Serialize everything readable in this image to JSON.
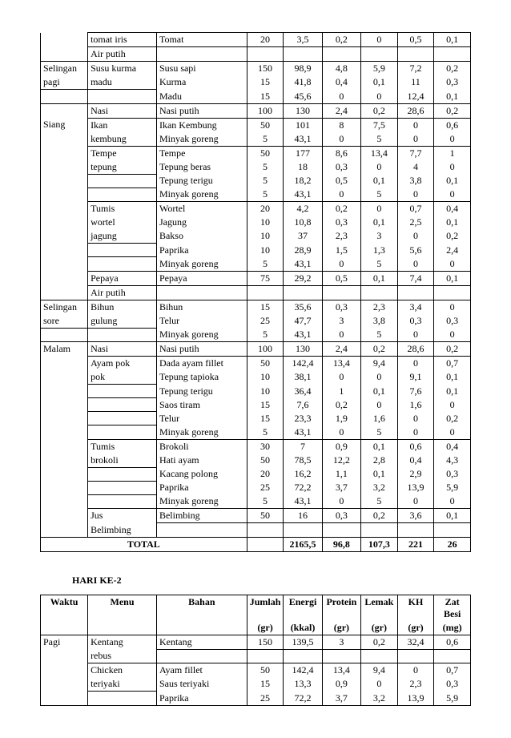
{
  "table1": {
    "rows": [
      {
        "c1": "",
        "c2": "tomat iris",
        "c3": "Tomat",
        "c4": "20",
        "c5": "3,5",
        "c6": "0,2",
        "c7": "0",
        "c8": "0,5",
        "c9": "0,1",
        "b1": "nt nb",
        "b2": "",
        "b3": "",
        "b4": "",
        "b5": "",
        "b6": "",
        "b7": "",
        "b8": "",
        "b9": ""
      },
      {
        "c1": "",
        "c2": "Air putih",
        "c3": "",
        "c4": "",
        "c5": "",
        "c6": "",
        "c7": "",
        "c8": "",
        "c9": "",
        "b1": "nt",
        "b2": "",
        "b3": "",
        "b4": "",
        "b5": "",
        "b6": "",
        "b7": "",
        "b8": "",
        "b9": ""
      },
      {
        "c1": "Selingan",
        "c2": "Susu kurma",
        "c3": "Susu sapi",
        "c4": "150",
        "c5": "98,9",
        "c6": "4,8",
        "c7": "5,9",
        "c8": "7,2",
        "c9": "0,2",
        "b1": "nb",
        "b2": "nb",
        "b3": "nb",
        "b4": "nb",
        "b5": "nb",
        "b6": "nb",
        "b7": "nb",
        "b8": "nb",
        "b9": "nb"
      },
      {
        "c1": "pagi",
        "c2": "madu",
        "c3": "Kurma",
        "c4": "15",
        "c5": "41,8",
        "c6": "0,4",
        "c7": "0,1",
        "c8": "11",
        "c9": "0,3",
        "b1": "nt",
        "b2": "nt",
        "b3": "nt nb",
        "b4": "nt nb",
        "b5": "nt nb",
        "b6": "nt nb",
        "b7": "nt nb",
        "b8": "nt nb",
        "b9": "nt nb"
      },
      {
        "c1": "",
        "c2": "",
        "c3": "Madu",
        "c4": "15",
        "c5": "45,6",
        "c6": "0",
        "c7": "0",
        "c8": "12,4",
        "c9": "0,1",
        "b1": "nt",
        "b2": "nt",
        "b3": "nt",
        "b4": "nt",
        "b5": "nt",
        "b6": "nt",
        "b7": "nt",
        "b8": "nt",
        "b9": "nt"
      },
      {
        "c1": "",
        "c2": "Nasi",
        "c3": "Nasi putih",
        "c4": "100",
        "c5": "130",
        "c6": "2,4",
        "c7": "0,2",
        "c8": "28,6",
        "c9": "0,2",
        "b1": "nb",
        "b2": "",
        "b3": "",
        "b4": "",
        "b5": "",
        "b6": "",
        "b7": "",
        "b8": "",
        "b9": ""
      },
      {
        "c1": "Siang",
        "c2": "Ikan",
        "c3": "Ikan Kembung",
        "c4": "50",
        "c5": "101",
        "c6": "8",
        "c7": "7,5",
        "c8": "0",
        "c9": "0,6",
        "b1": "nt nb",
        "b2": "nb",
        "b3": "nb",
        "b4": "nb",
        "b5": "nb",
        "b6": "nb",
        "b7": "nb",
        "b8": "nb",
        "b9": "nb"
      },
      {
        "c1": "",
        "c2": "kembung",
        "c3": "Minyak goreng",
        "c4": "5",
        "c5": "43,1",
        "c6": "0",
        "c7": "5",
        "c8": "0",
        "c9": "0",
        "b1": "nt nb",
        "b2": "nt",
        "b3": "nt",
        "b4": "nt",
        "b5": "nt",
        "b6": "nt",
        "b7": "nt",
        "b8": "nt",
        "b9": "nt"
      },
      {
        "c1": "",
        "c2": "Tempe",
        "c3": "Tempe",
        "c4": "50",
        "c5": "177",
        "c6": "8,6",
        "c7": "13,4",
        "c8": "7,7",
        "c9": "1",
        "b1": "nt nb",
        "b2": "nb",
        "b3": "nb",
        "b4": "nb",
        "b5": "nb",
        "b6": "nb",
        "b7": "nb",
        "b8": "nb",
        "b9": "nb"
      },
      {
        "c1": "",
        "c2": "tepung",
        "c3": "Tepung beras",
        "c4": "5",
        "c5": "18",
        "c6": "0,3",
        "c7": "0",
        "c8": "4",
        "c9": "0",
        "b1": "nt nb",
        "b2": "nt",
        "b3": "nt nb",
        "b4": "nt nb",
        "b5": "nt nb",
        "b6": "nt nb",
        "b7": "nt nb",
        "b8": "nt nb",
        "b9": "nt nb"
      },
      {
        "c1": "",
        "c2": "",
        "c3": "Tepung terigu",
        "c4": "5",
        "c5": "18,2",
        "c6": "0,5",
        "c7": "0,1",
        "c8": "3,8",
        "c9": "0,1",
        "b1": "nt nb",
        "b2": "nt",
        "b3": "nt nb",
        "b4": "nt nb",
        "b5": "nt nb",
        "b6": "nt nb",
        "b7": "nt nb",
        "b8": "nt nb",
        "b9": "nt nb"
      },
      {
        "c1": "",
        "c2": "",
        "c3": "Minyak goreng",
        "c4": "5",
        "c5": "43,1",
        "c6": "0",
        "c7": "5",
        "c8": "0",
        "c9": "0",
        "b1": "nt nb",
        "b2": "nt",
        "b3": "nt",
        "b4": "nt",
        "b5": "nt",
        "b6": "nt",
        "b7": "nt",
        "b8": "nt",
        "b9": "nt"
      },
      {
        "c1": "",
        "c2": "Tumis",
        "c3": "Wortel",
        "c4": "20",
        "c5": "4,2",
        "c6": "0,2",
        "c7": "0",
        "c8": "0,7",
        "c9": "0,4",
        "b1": "nt nb",
        "b2": "nb",
        "b3": "nb",
        "b4": "nb",
        "b5": "nb",
        "b6": "nb",
        "b7": "nb",
        "b8": "nb",
        "b9": "nb"
      },
      {
        "c1": "",
        "c2": "wortel",
        "c3": "Jagung",
        "c4": "10",
        "c5": "10,8",
        "c6": "0,3",
        "c7": "0,1",
        "c8": "2,5",
        "c9": "0,1",
        "b1": "nt nb",
        "b2": "nt nb",
        "b3": "nt nb",
        "b4": "nt nb",
        "b5": "nt nb",
        "b6": "nt nb",
        "b7": "nt nb",
        "b8": "nt nb",
        "b9": "nt nb"
      },
      {
        "c1": "",
        "c2": "jagung",
        "c3": "Bakso",
        "c4": "10",
        "c5": "37",
        "c6": "2,3",
        "c7": "3",
        "c8": "0",
        "c9": "0,2",
        "b1": "nt nb",
        "b2": "nt",
        "b3": "nt nb",
        "b4": "nt nb",
        "b5": "nt nb",
        "b6": "nt nb",
        "b7": "nt nb",
        "b8": "nt nb",
        "b9": "nt nb"
      },
      {
        "c1": "",
        "c2": "",
        "c3": "Paprika",
        "c4": "10",
        "c5": "28,9",
        "c6": "1,5",
        "c7": "1,3",
        "c8": "5,6",
        "c9": "2,4",
        "b1": "nt nb",
        "b2": "nt",
        "b3": "nt nb",
        "b4": "nt nb",
        "b5": "nt nb",
        "b6": "nt nb",
        "b7": "nt nb",
        "b8": "nt nb",
        "b9": "nt nb"
      },
      {
        "c1": "",
        "c2": "",
        "c3": "Minyak goreng",
        "c4": "5",
        "c5": "43,1",
        "c6": "0",
        "c7": "5",
        "c8": "0",
        "c9": "0",
        "b1": "nt nb",
        "b2": "nt",
        "b3": "nt",
        "b4": "nt",
        "b5": "nt",
        "b6": "nt",
        "b7": "nt",
        "b8": "nt",
        "b9": "nt"
      },
      {
        "c1": "",
        "c2": "Pepaya",
        "c3": "Pepaya",
        "c4": "75",
        "c5": "29,2",
        "c6": "0,5",
        "c7": "0,1",
        "c8": "7,4",
        "c9": "0,1",
        "b1": "nt nb",
        "b2": "",
        "b3": "",
        "b4": "",
        "b5": "",
        "b6": "",
        "b7": "",
        "b8": "",
        "b9": ""
      },
      {
        "c1": "",
        "c2": "Air putih",
        "c3": "",
        "c4": "",
        "c5": "",
        "c6": "",
        "c7": "",
        "c8": "",
        "c9": "",
        "b1": "nt",
        "b2": "",
        "b3": "",
        "b4": "",
        "b5": "",
        "b6": "",
        "b7": "",
        "b8": "",
        "b9": ""
      },
      {
        "c1": "Selingan",
        "c2": "Bihun",
        "c3": "Bihun",
        "c4": "15",
        "c5": "35,6",
        "c6": "0,3",
        "c7": "2,3",
        "c8": "3,4",
        "c9": "0",
        "b1": "nb",
        "b2": "nb",
        "b3": "nb",
        "b4": "nb",
        "b5": "nb",
        "b6": "nb",
        "b7": "nb",
        "b8": "nb",
        "b9": "nb"
      },
      {
        "c1": "sore",
        "c2": "gulung",
        "c3": "Telur",
        "c4": "25",
        "c5": "47,7",
        "c6": "3",
        "c7": "3,8",
        "c8": "0,3",
        "c9": "0,3",
        "b1": "nt",
        "b2": "nt",
        "b3": "nt nb",
        "b4": "nt nb",
        "b5": "nt nb",
        "b6": "nt nb",
        "b7": "nt nb",
        "b8": "nt nb",
        "b9": "nt nb"
      },
      {
        "c1": "",
        "c2": "",
        "c3": "Minyak goreng",
        "c4": "5",
        "c5": "43,1",
        "c6": "0",
        "c7": "5",
        "c8": "0",
        "c9": "0",
        "b1": "nt",
        "b2": "nt",
        "b3": "nt",
        "b4": "nt",
        "b5": "nt",
        "b6": "nt",
        "b7": "nt",
        "b8": "nt",
        "b9": "nt"
      },
      {
        "c1": "Malam",
        "c2": "Nasi",
        "c3": "Nasi putih",
        "c4": "100",
        "c5": "130",
        "c6": "2,4",
        "c7": "0,2",
        "c8": "28,6",
        "c9": "0,2",
        "b1": "nb",
        "b2": "",
        "b3": "",
        "b4": "",
        "b5": "",
        "b6": "",
        "b7": "",
        "b8": "",
        "b9": ""
      },
      {
        "c1": "",
        "c2": "Ayam pok",
        "c3": "Dada ayam fillet",
        "c4": "50",
        "c5": "142,4",
        "c6": "13,4",
        "c7": "9,4",
        "c8": "0",
        "c9": "0,7",
        "b1": "nt nb",
        "b2": "nb",
        "b3": "nb",
        "b4": "nb",
        "b5": "nb",
        "b6": "nb",
        "b7": "nb",
        "b8": "nb",
        "b9": "nb"
      },
      {
        "c1": "",
        "c2": "pok",
        "c3": "Tepung tapioka",
        "c4": "10",
        "c5": "38,1",
        "c6": "0",
        "c7": "0",
        "c8": "9,1",
        "c9": "0,1",
        "b1": "nt nb",
        "b2": "nt",
        "b3": "nt nb",
        "b4": "nt nb",
        "b5": "nt nb",
        "b6": "nt nb",
        "b7": "nt nb",
        "b8": "nt nb",
        "b9": "nt nb"
      },
      {
        "c1": "",
        "c2": "",
        "c3": "Tepung terigu",
        "c4": "10",
        "c5": "36,4",
        "c6": "1",
        "c7": "0,1",
        "c8": "7,6",
        "c9": "0,1",
        "b1": "nt nb",
        "b2": "nt",
        "b3": "nt nb",
        "b4": "nt nb",
        "b5": "nt nb",
        "b6": "nt nb",
        "b7": "nt nb",
        "b8": "nt nb",
        "b9": "nt nb"
      },
      {
        "c1": "",
        "c2": "",
        "c3": "Saos tiram",
        "c4": "15",
        "c5": "7,6",
        "c6": "0,2",
        "c7": "0",
        "c8": "1,6",
        "c9": "0",
        "b1": "nt nb",
        "b2": "nt",
        "b3": "nt nb",
        "b4": "nt nb",
        "b5": "nt nb",
        "b6": "nt nb",
        "b7": "nt nb",
        "b8": "nt nb",
        "b9": "nt nb"
      },
      {
        "c1": "",
        "c2": "",
        "c3": "Telur",
        "c4": "15",
        "c5": "23,3",
        "c6": "1,9",
        "c7": "1,6",
        "c8": "0",
        "c9": "0,2",
        "b1": "nt nb",
        "b2": "nt",
        "b3": "nt nb",
        "b4": "nt nb",
        "b5": "nt nb",
        "b6": "nt nb",
        "b7": "nt nb",
        "b8": "nt nb",
        "b9": "nt nb"
      },
      {
        "c1": "",
        "c2": "",
        "c3": "Minyak goreng",
        "c4": "5",
        "c5": "43,1",
        "c6": "0",
        "c7": "5",
        "c8": "0",
        "c9": "0",
        "b1": "nt nb",
        "b2": "nt",
        "b3": "nt",
        "b4": "nt",
        "b5": "nt",
        "b6": "nt",
        "b7": "nt",
        "b8": "nt",
        "b9": "nt"
      },
      {
        "c1": "",
        "c2": "Tumis",
        "c3": "Brokoli",
        "c4": "30",
        "c5": "7",
        "c6": "0,9",
        "c7": "0,1",
        "c8": "0,6",
        "c9": "0,4",
        "b1": "nt nb",
        "b2": "nb",
        "b3": "nb",
        "b4": "nb",
        "b5": "nb",
        "b6": "nb",
        "b7": "nb",
        "b8": "nb",
        "b9": "nb"
      },
      {
        "c1": "",
        "c2": "brokoli",
        "c3": "Hati ayam",
        "c4": "50",
        "c5": "78,5",
        "c6": "12,2",
        "c7": "2,8",
        "c8": "0,4",
        "c9": "4,3",
        "b1": "nt nb",
        "b2": "nt",
        "b3": "nt nb",
        "b4": "nt nb",
        "b5": "nt nb",
        "b6": "nt nb",
        "b7": "nt nb",
        "b8": "nt nb",
        "b9": "nt nb"
      },
      {
        "c1": "",
        "c2": "",
        "c3": "Kacang polong",
        "c4": "20",
        "c5": "16,2",
        "c6": "1,1",
        "c7": "0,1",
        "c8": "2,9",
        "c9": "0,3",
        "b1": "nt nb",
        "b2": "nt",
        "b3": "nt nb",
        "b4": "nt nb",
        "b5": "nt nb",
        "b6": "nt nb",
        "b7": "nt nb",
        "b8": "nt nb",
        "b9": "nt nb"
      },
      {
        "c1": "",
        "c2": "",
        "c3": "Paprika",
        "c4": "25",
        "c5": "72,2",
        "c6": "3,7",
        "c7": "3,2",
        "c8": "13,9",
        "c9": "5,9",
        "b1": "nt nb",
        "b2": "nt",
        "b3": "nt nb",
        "b4": "nt nb",
        "b5": "nt nb",
        "b6": "nt nb",
        "b7": "nt nb",
        "b8": "nt nb",
        "b9": "nt nb"
      },
      {
        "c1": "",
        "c2": "",
        "c3": "Minyak goreng",
        "c4": "5",
        "c5": "43,1",
        "c6": "0",
        "c7": "5",
        "c8": "0",
        "c9": "0",
        "b1": "nt nb",
        "b2": "nt",
        "b3": "nt",
        "b4": "nt",
        "b5": "nt",
        "b6": "nt",
        "b7": "nt",
        "b8": "nt",
        "b9": "nt"
      },
      {
        "c1": "",
        "c2": "Jus",
        "c3": "Belimbing",
        "c4": "50",
        "c5": "16",
        "c6": "0,3",
        "c7": "0,2",
        "c8": "3,6",
        "c9": "0,1",
        "b1": "nt nb",
        "b2": "nb",
        "b3": "",
        "b4": "",
        "b5": "",
        "b6": "",
        "b7": "",
        "b8": "",
        "b9": ""
      },
      {
        "c1": "",
        "c2": "Belimbing",
        "c3": "",
        "c4": "",
        "c5": "",
        "c6": "",
        "c7": "",
        "c8": "",
        "c9": "",
        "b1": "nt",
        "b2": "nt",
        "b3": "nt",
        "b4": "nt",
        "b5": "nt",
        "b6": "nt",
        "b7": "nt",
        "b8": "nt",
        "b9": "nt"
      }
    ],
    "total": {
      "label": "TOTAL",
      "c5": "2165,5",
      "c6": "96,8",
      "c7": "107,3",
      "c8": "221",
      "c9": "26"
    }
  },
  "section2_title": "HARI KE-2",
  "table2": {
    "headers": {
      "c1a": "Waktu",
      "c2a": "Menu",
      "c3a": "Bahan",
      "c4a": "Jumlah",
      "c4b": "(gr)",
      "c5a": "Energi",
      "c5b": "(kkal)",
      "c6a": "Protein",
      "c6b": "(gr)",
      "c7a": "Lemak",
      "c7b": "(gr)",
      "c8a": "KH",
      "c8b": "(gr)",
      "c9a": "Zat Besi",
      "c9b": "(mg)"
    },
    "rows": [
      {
        "c1": "Pagi",
        "c2": "Kentang",
        "c3": "Kentang",
        "c4": "150",
        "c5": "139,5",
        "c6": "3",
        "c7": "0,2",
        "c8": "32,4",
        "c9": "0,6",
        "b1": "nb",
        "b2": "nb",
        "b3": "",
        "b4": "",
        "b5": "",
        "b6": "",
        "b7": "",
        "b8": "",
        "b9": ""
      },
      {
        "c1": "",
        "c2": "rebus",
        "c3": "",
        "c4": "",
        "c5": "",
        "c6": "",
        "c7": "",
        "c8": "",
        "c9": "",
        "b1": "nt nb",
        "b2": "nt",
        "b3": "nt",
        "b4": "nt",
        "b5": "nt",
        "b6": "nt",
        "b7": "nt",
        "b8": "nt",
        "b9": "nt"
      },
      {
        "c1": "",
        "c2": "Chicken",
        "c3": "Ayam fillet",
        "c4": "50",
        "c5": "142,4",
        "c6": "13,4",
        "c7": "9,4",
        "c8": "0",
        "c9": "0,7",
        "b1": "nt nb",
        "b2": "nb",
        "b3": "nb",
        "b4": "nb",
        "b5": "nb",
        "b6": "nb",
        "b7": "nb",
        "b8": "nb",
        "b9": "nb"
      },
      {
        "c1": "",
        "c2": "teriyaki",
        "c3": "Saus teriyaki",
        "c4": "15",
        "c5": "13,3",
        "c6": "0,9",
        "c7": "0",
        "c8": "2,3",
        "c9": "0,3",
        "b1": "nt nb",
        "b2": "nt",
        "b3": "nt nb",
        "b4": "nt nb",
        "b5": "nt nb",
        "b6": "nt nb",
        "b7": "nt nb",
        "b8": "nt nb",
        "b9": "nt nb"
      },
      {
        "c1": "",
        "c2": "",
        "c3": "Paprika",
        "c4": "25",
        "c5": "72,2",
        "c6": "3,7",
        "c7": "3,2",
        "c8": "13,9",
        "c9": "5,9",
        "b1": "nt",
        "b2": "nt",
        "b3": "nt",
        "b4": "nt",
        "b5": "nt",
        "b6": "nt",
        "b7": "nt",
        "b8": "nt",
        "b9": "nt"
      }
    ]
  }
}
